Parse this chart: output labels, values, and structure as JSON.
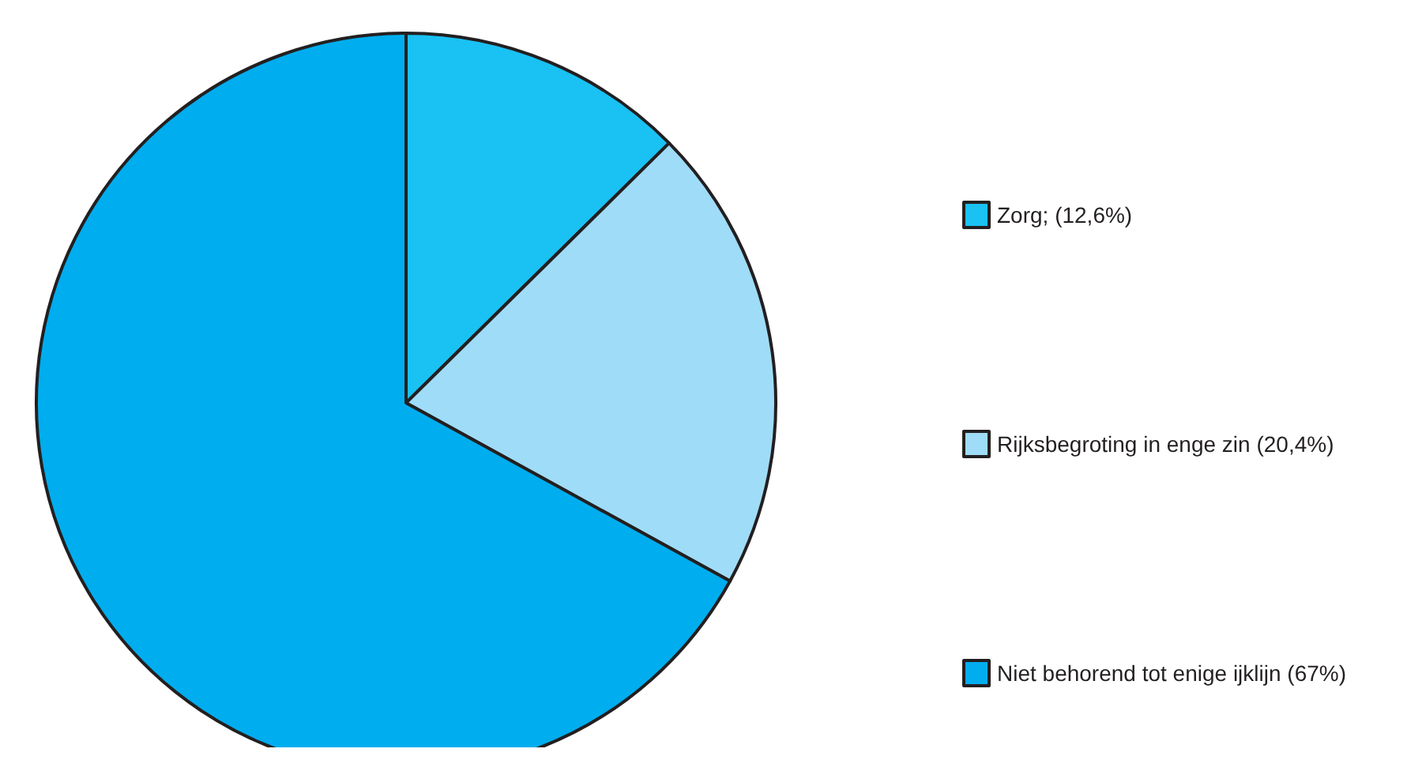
{
  "chart_data": {
    "type": "pie",
    "categories": [
      "Zorg; (12,6%)",
      "Rijksbegroting in enge zin (20,4%)",
      "Niet behorend tot enige ijklijn (67%)"
    ],
    "values": [
      12.6,
      20.4,
      67
    ],
    "colors": [
      "#1ac1f3",
      "#9fdcf7",
      "#00adee"
    ],
    "legend": "right"
  }
}
